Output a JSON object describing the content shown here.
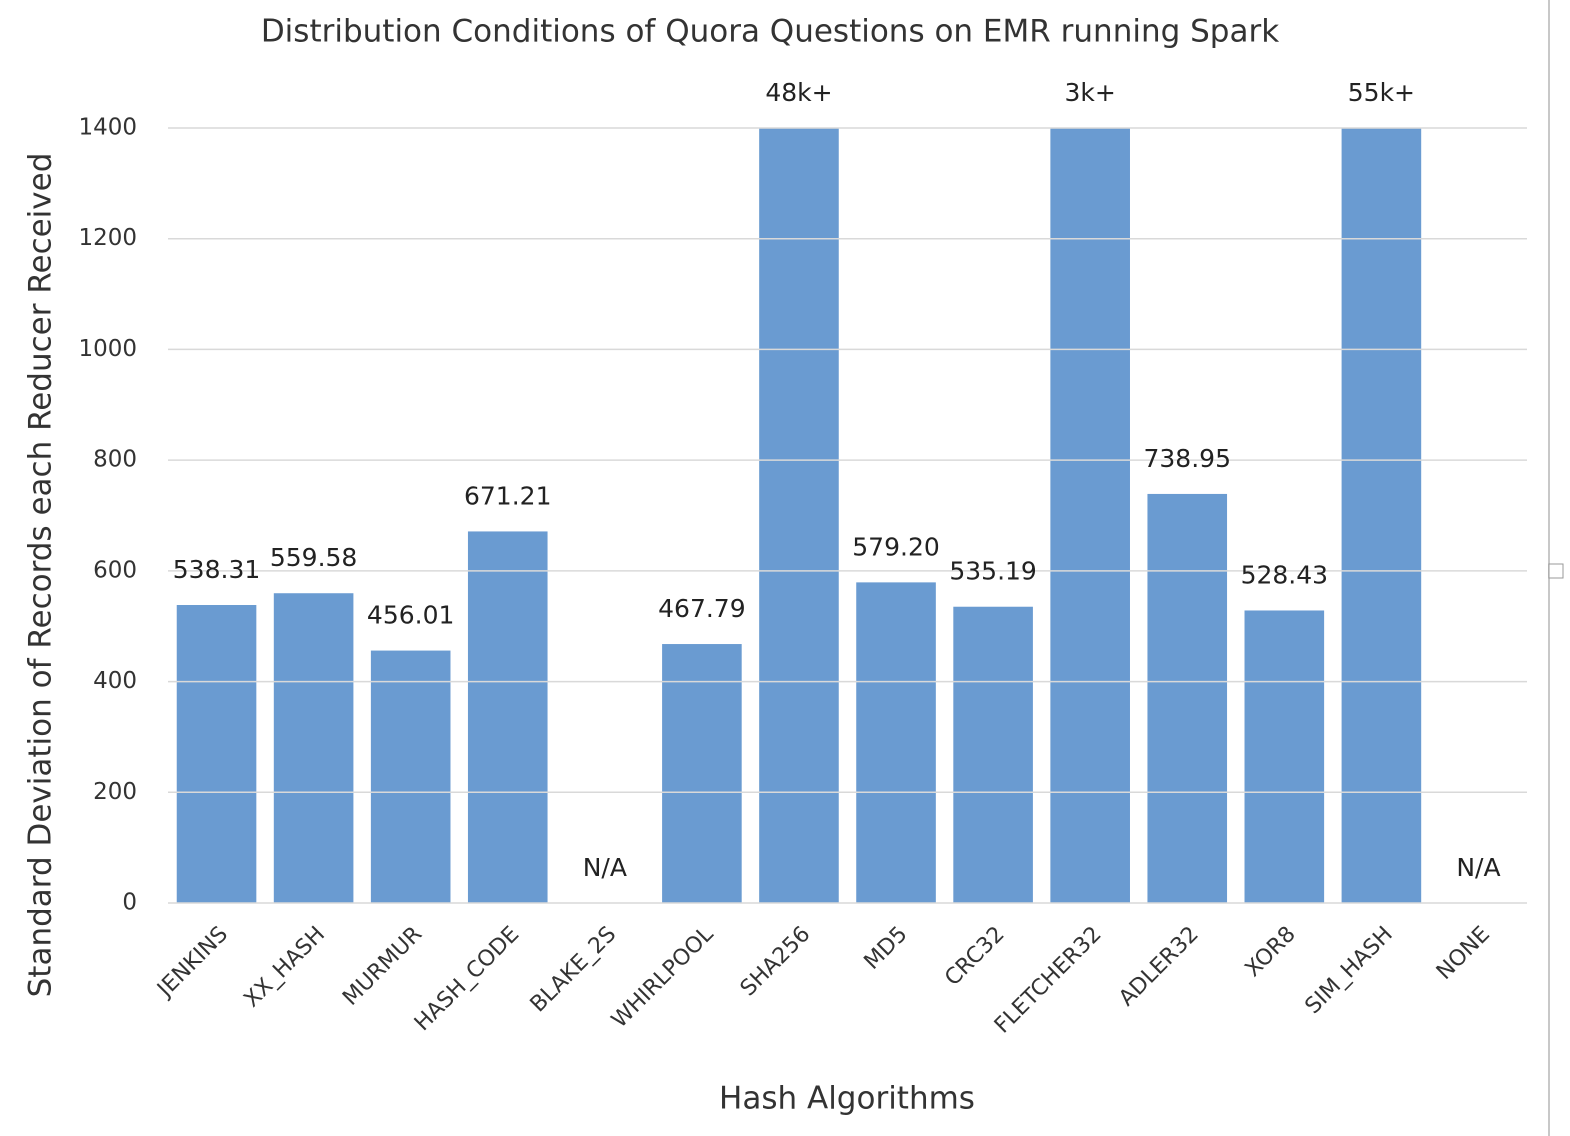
{
  "chart_data": {
    "type": "bar",
    "title": "Distribution Conditions of Quora Questions on EMR running Spark",
    "x_label": "Hash Algorithms",
    "y_label": "Standard Deviation of  Records each Reducer Received",
    "categories": [
      "JENKINS",
      "XX_HASH",
      "MURMUR",
      "HASH_CODE",
      "BLAKE_2S",
      "WHIRLPOOL",
      "SHA256",
      "MD5",
      "CRC32",
      "FLETCHER32",
      "ADLER32",
      "XOR8",
      "SIM_HASH",
      "NONE"
    ],
    "values": [
      538.31,
      559.58,
      456.01,
      671.21,
      null,
      467.79,
      48000,
      579.2,
      535.19,
      3000,
      738.95,
      528.43,
      55000,
      null
    ],
    "value_labels": [
      "538.31",
      "559.58",
      "456.01",
      "671.21",
      "N/A",
      "467.79",
      "48k+",
      "579.20",
      "535.19",
      "3k+",
      "738.95",
      "528.43",
      "55k+",
      "N/A"
    ],
    "color": "#6a9bd1",
    "ylim": [
      0,
      1400
    ],
    "yticks": [
      0,
      200,
      400,
      600,
      800,
      1000,
      1200,
      1400
    ],
    "grid": true
  }
}
